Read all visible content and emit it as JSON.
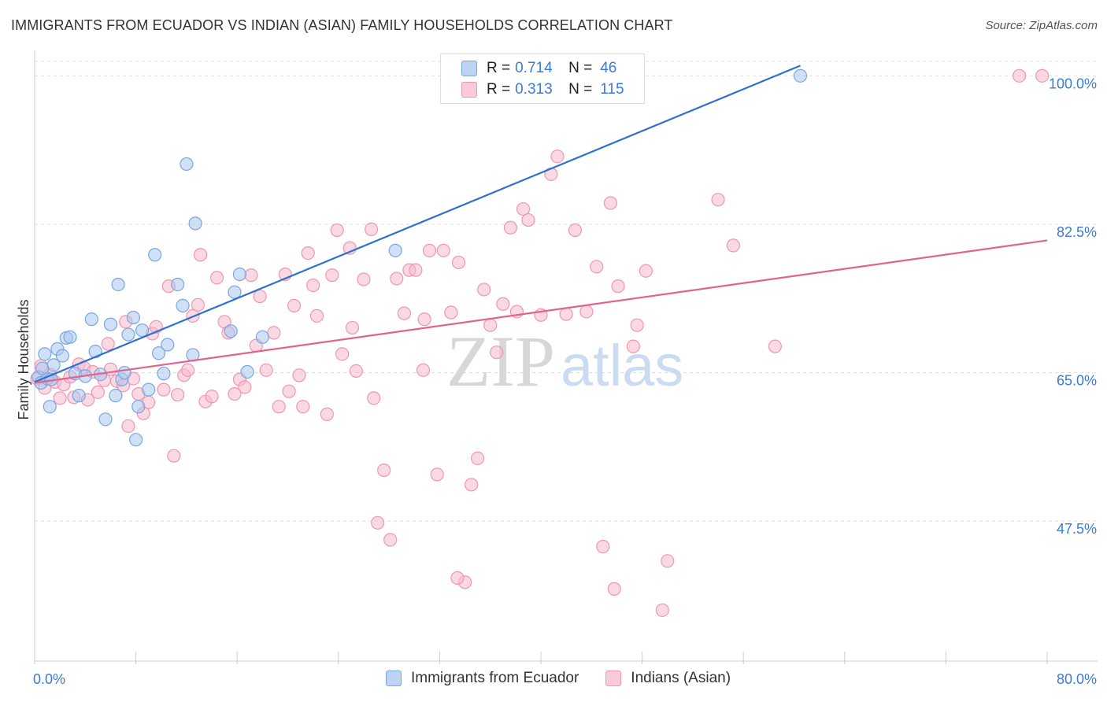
{
  "title": "IMMIGRANTS FROM ECUADOR VS INDIAN (ASIAN) FAMILY HOUSEHOLDS CORRELATION CHART",
  "source": "Source: ZipAtlas.com",
  "watermark": {
    "zip": "ZIP",
    "atlas": "atlas"
  },
  "colors": {
    "blue_fill": "#a9c6f0",
    "blue_stroke": "#7aa6e0",
    "blue_line": "#2e6fcf",
    "pink_fill": "#f7b9cc",
    "pink_stroke": "#ee96b2",
    "pink_line": "#e0648c",
    "axis_label": "#3a7bd5",
    "grid": "#dddddd"
  },
  "legend": {
    "rows": [
      {
        "r_label": "R =",
        "r_value": "0.714",
        "n_label": "N =",
        "n_value": "46"
      },
      {
        "r_label": "R =",
        "r_value": "0.313",
        "n_label": "N =",
        "n_value": "115"
      }
    ]
  },
  "bottom_legend": [
    "Immigrants from Ecuador",
    "Indians (Asian)"
  ],
  "chart_data": {
    "type": "scatter",
    "title": "IMMIGRANTS FROM ECUADOR VS INDIAN (ASIAN) FAMILY HOUSEHOLDS CORRELATION CHART",
    "xlabel": "",
    "ylabel": "Family Households",
    "xlim": [
      0,
      80
    ],
    "ylim": [
      31,
      103
    ],
    "x_tick_labels": [
      "0.0%",
      "80.0%"
    ],
    "y_ticks": [
      47.5,
      65.0,
      82.5,
      100.0
    ],
    "y_tick_labels": [
      "47.5%",
      "65.0%",
      "82.5%",
      "100.0%"
    ],
    "grid": true,
    "legend_position": "top-center",
    "series": [
      {
        "name": "Immigrants from Ecuador",
        "color": "#a9c6f0",
        "trend": {
          "x": [
            0,
            60.5
          ],
          "y": [
            63.9,
            101.2
          ]
        },
        "points": [
          [
            0.3,
            64.5
          ],
          [
            0.5,
            63.8
          ],
          [
            0.8,
            67.2
          ],
          [
            1.0,
            64.3
          ],
          [
            1.2,
            61.0
          ],
          [
            1.5,
            65.9
          ],
          [
            1.8,
            67.8
          ],
          [
            2.2,
            67.0
          ],
          [
            2.5,
            69.1
          ],
          [
            2.8,
            69.2
          ],
          [
            3.2,
            64.9
          ],
          [
            3.5,
            62.3
          ],
          [
            4.0,
            64.6
          ],
          [
            4.5,
            71.3
          ],
          [
            4.8,
            67.5
          ],
          [
            5.2,
            64.8
          ],
          [
            5.6,
            59.5
          ],
          [
            6.0,
            70.7
          ],
          [
            6.4,
            62.3
          ],
          [
            6.6,
            75.4
          ],
          [
            6.9,
            64.2
          ],
          [
            7.1,
            65.0
          ],
          [
            7.4,
            69.5
          ],
          [
            7.8,
            71.5
          ],
          [
            8.0,
            57.1
          ],
          [
            8.2,
            61.0
          ],
          [
            8.5,
            70.0
          ],
          [
            9.0,
            63.0
          ],
          [
            9.5,
            78.9
          ],
          [
            9.8,
            67.3
          ],
          [
            10.2,
            64.9
          ],
          [
            10.5,
            68.3
          ],
          [
            11.3,
            75.4
          ],
          [
            11.7,
            72.9
          ],
          [
            12.0,
            89.6
          ],
          [
            12.5,
            67.1
          ],
          [
            12.7,
            82.6
          ],
          [
            15.5,
            69.9
          ],
          [
            15.8,
            74.5
          ],
          [
            16.2,
            76.6
          ],
          [
            16.8,
            65.1
          ],
          [
            18.0,
            69.2
          ],
          [
            28.5,
            79.4
          ],
          [
            60.5,
            100.0
          ],
          [
            0.6,
            65.5
          ],
          [
            1.3,
            64.2
          ]
        ]
      },
      {
        "name": "Indians (Asian)",
        "color": "#f7b9cc",
        "trend": {
          "x": [
            0,
            80
          ],
          "y": [
            63.8,
            80.6
          ]
        },
        "points": [
          [
            0.2,
            64.3
          ],
          [
            0.5,
            65.8
          ],
          [
            0.8,
            63.2
          ],
          [
            1.2,
            64.8
          ],
          [
            1.6,
            63.9
          ],
          [
            2.0,
            62.0
          ],
          [
            2.3,
            63.6
          ],
          [
            2.8,
            64.5
          ],
          [
            3.1,
            62.1
          ],
          [
            3.5,
            66.0
          ],
          [
            3.9,
            65.6
          ],
          [
            4.2,
            61.8
          ],
          [
            4.6,
            65.1
          ],
          [
            5.0,
            62.7
          ],
          [
            5.5,
            64.1
          ],
          [
            6.0,
            65.4
          ],
          [
            6.5,
            64.0
          ],
          [
            7.0,
            63.5
          ],
          [
            7.4,
            58.7
          ],
          [
            7.8,
            64.3
          ],
          [
            8.2,
            62.5
          ],
          [
            8.6,
            60.2
          ],
          [
            9.0,
            61.5
          ],
          [
            9.3,
            69.6
          ],
          [
            9.6,
            70.4
          ],
          [
            10.2,
            63.0
          ],
          [
            10.6,
            75.2
          ],
          [
            11.0,
            55.2
          ],
          [
            11.3,
            62.4
          ],
          [
            11.8,
            64.7
          ],
          [
            12.1,
            65.3
          ],
          [
            12.5,
            71.7
          ],
          [
            12.9,
            73.0
          ],
          [
            13.1,
            78.9
          ],
          [
            13.5,
            61.6
          ],
          [
            14.0,
            62.2
          ],
          [
            14.4,
            76.2
          ],
          [
            15.0,
            71.0
          ],
          [
            15.3,
            69.7
          ],
          [
            15.8,
            62.5
          ],
          [
            16.2,
            64.2
          ],
          [
            16.6,
            63.3
          ],
          [
            17.1,
            76.5
          ],
          [
            17.5,
            68.2
          ],
          [
            17.8,
            74.0
          ],
          [
            18.3,
            65.3
          ],
          [
            18.9,
            69.7
          ],
          [
            19.3,
            61.0
          ],
          [
            19.8,
            76.6
          ],
          [
            20.1,
            62.8
          ],
          [
            20.5,
            72.9
          ],
          [
            20.9,
            64.7
          ],
          [
            21.2,
            61.0
          ],
          [
            21.6,
            79.1
          ],
          [
            22.0,
            75.3
          ],
          [
            22.3,
            71.7
          ],
          [
            23.1,
            60.1
          ],
          [
            23.5,
            76.5
          ],
          [
            23.9,
            81.8
          ],
          [
            24.3,
            67.2
          ],
          [
            24.9,
            79.7
          ],
          [
            25.4,
            65.2
          ],
          [
            26.0,
            76.0
          ],
          [
            26.6,
            81.9
          ],
          [
            27.1,
            47.3
          ],
          [
            27.6,
            53.5
          ],
          [
            28.1,
            45.3
          ],
          [
            28.6,
            76.1
          ],
          [
            29.2,
            72.0
          ],
          [
            29.6,
            77.1
          ],
          [
            30.1,
            77.1
          ],
          [
            30.7,
            65.3
          ],
          [
            31.2,
            79.4
          ],
          [
            31.8,
            53.0
          ],
          [
            32.3,
            79.4
          ],
          [
            32.9,
            72.1
          ],
          [
            33.5,
            78.0
          ],
          [
            34.0,
            40.3
          ],
          [
            34.5,
            51.8
          ],
          [
            35.0,
            54.9
          ],
          [
            35.5,
            74.8
          ],
          [
            36.0,
            70.6
          ],
          [
            36.5,
            67.4
          ],
          [
            37.0,
            73.1
          ],
          [
            37.6,
            82.1
          ],
          [
            38.1,
            72.2
          ],
          [
            38.6,
            84.3
          ],
          [
            39.0,
            83.0
          ],
          [
            40.0,
            71.8
          ],
          [
            40.8,
            88.4
          ],
          [
            41.3,
            90.5
          ],
          [
            42.0,
            71.9
          ],
          [
            42.7,
            81.8
          ],
          [
            43.6,
            72.2
          ],
          [
            44.4,
            77.5
          ],
          [
            44.9,
            44.5
          ],
          [
            45.5,
            85.0
          ],
          [
            45.8,
            39.5
          ],
          [
            46.1,
            75.2
          ],
          [
            47.3,
            68.1
          ],
          [
            47.6,
            70.6
          ],
          [
            48.3,
            77.0
          ],
          [
            49.6,
            37.0
          ],
          [
            50.0,
            42.8
          ],
          [
            54.0,
            85.4
          ],
          [
            55.2,
            80.0
          ],
          [
            58.5,
            68.1
          ],
          [
            77.8,
            100.0
          ],
          [
            79.6,
            100.0
          ],
          [
            33.4,
            40.8
          ],
          [
            7.2,
            71.0
          ],
          [
            5.8,
            68.4
          ],
          [
            25.1,
            70.3
          ],
          [
            26.8,
            62.0
          ],
          [
            30.8,
            71.3
          ]
        ]
      }
    ]
  }
}
